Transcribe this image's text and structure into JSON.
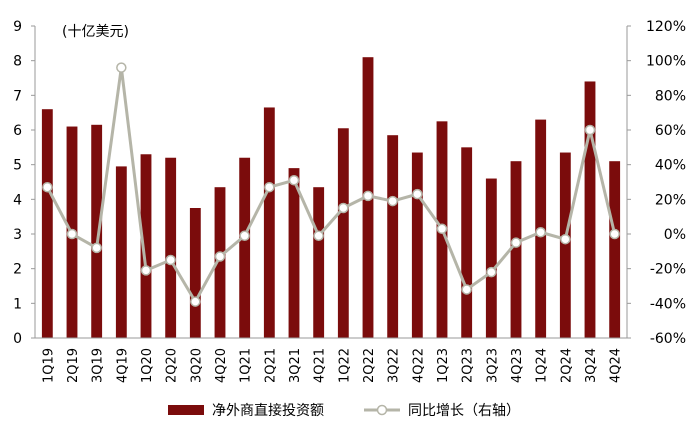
{
  "chart_data": {
    "type": "bar+line",
    "unit_label": "(十亿美元)",
    "categories": [
      "1Q19",
      "2Q19",
      "3Q19",
      "4Q19",
      "1Q20",
      "2Q20",
      "3Q20",
      "4Q20",
      "1Q21",
      "2Q21",
      "3Q21",
      "4Q21",
      "1Q22",
      "2Q22",
      "3Q22",
      "4Q22",
      "1Q23",
      "2Q23",
      "3Q23",
      "4Q23",
      "1Q24",
      "2Q24",
      "3Q24",
      "4Q24"
    ],
    "series": [
      {
        "name": "净外商直接投资额",
        "type": "bar",
        "axis": "left",
        "color": "#7b0c0c",
        "values": [
          6.6,
          6.1,
          6.15,
          4.95,
          5.3,
          5.2,
          3.75,
          4.35,
          5.2,
          6.65,
          4.9,
          4.35,
          6.05,
          8.1,
          5.85,
          5.35,
          6.25,
          5.5,
          4.6,
          5.1,
          6.3,
          5.35,
          7.4,
          5.1
        ]
      },
      {
        "name": "同比增长（右轴）",
        "type": "line",
        "axis": "right",
        "color": "#b5b5a8",
        "values": [
          27,
          0,
          -8,
          96,
          -21,
          -15,
          -39,
          -13,
          -1,
          27,
          31,
          -1,
          15,
          22,
          19,
          23,
          3,
          -32,
          -22,
          -5,
          1,
          -3,
          60,
          0
        ]
      }
    ],
    "left_axis": {
      "ylim": [
        0,
        9
      ],
      "ticks": [
        "0",
        "1",
        "2",
        "3",
        "4",
        "5",
        "6",
        "7",
        "8",
        "9"
      ]
    },
    "right_axis": {
      "ylim": [
        -60,
        120
      ],
      "ticks": [
        "-60%",
        "-40%",
        "-20%",
        "0%",
        "20%",
        "40%",
        "60%",
        "80%",
        "100%",
        "120%"
      ]
    },
    "grid": false,
    "legend": "bottom"
  }
}
